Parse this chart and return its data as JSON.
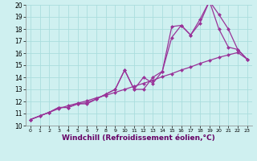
{
  "bg_color": "#cff0f0",
  "grid_color": "#aadddd",
  "line_color": "#993399",
  "marker_color": "#993399",
  "xlabel": "Windchill (Refroidissement éolien,°C)",
  "xlabel_fontsize": 6.5,
  "xlim": [
    -0.5,
    23.5
  ],
  "ylim": [
    10,
    20
  ],
  "yticks": [
    10,
    11,
    12,
    13,
    14,
    15,
    16,
    17,
    18,
    19,
    20
  ],
  "xticks": [
    0,
    1,
    2,
    3,
    4,
    5,
    6,
    7,
    8,
    9,
    10,
    11,
    12,
    13,
    14,
    15,
    16,
    17,
    18,
    19,
    20,
    21,
    22,
    23
  ],
  "series": [
    {
      "x": [
        0,
        1,
        2,
        3,
        4,
        5,
        6,
        7,
        8,
        9,
        10,
        11,
        12,
        13,
        14,
        15,
        16,
        17,
        18,
        19,
        20,
        21,
        22,
        23
      ],
      "y": [
        10.5,
        10.8,
        11.1,
        11.4,
        11.65,
        11.85,
        12.05,
        12.3,
        12.5,
        12.75,
        13.0,
        13.25,
        13.5,
        13.75,
        14.05,
        14.3,
        14.6,
        14.85,
        15.15,
        15.4,
        15.65,
        15.85,
        16.05,
        15.5
      ]
    },
    {
      "x": [
        0,
        1,
        2,
        3,
        4,
        5,
        6,
        7,
        8,
        9,
        10,
        11,
        12,
        13,
        14,
        15,
        16,
        17,
        18,
        19,
        20,
        21,
        22,
        23
      ],
      "y": [
        10.5,
        10.8,
        11.1,
        11.5,
        11.5,
        11.8,
        11.8,
        12.2,
        12.6,
        13.0,
        14.6,
        13.0,
        13.0,
        14.0,
        14.5,
        17.3,
        18.3,
        17.5,
        18.5,
        20.3,
        19.2,
        18.0,
        16.3,
        15.5
      ]
    },
    {
      "x": [
        0,
        2,
        3,
        4,
        5,
        6,
        7,
        8,
        9,
        10,
        11,
        12,
        13,
        14,
        15,
        16,
        17,
        18,
        19,
        20,
        21,
        22,
        23
      ],
      "y": [
        10.5,
        11.1,
        11.5,
        11.5,
        11.8,
        11.9,
        12.2,
        12.6,
        13.0,
        14.6,
        13.0,
        14.0,
        13.5,
        14.5,
        18.2,
        18.3,
        17.5,
        18.8,
        20.3,
        18.0,
        16.5,
        16.3,
        15.5
      ]
    }
  ]
}
